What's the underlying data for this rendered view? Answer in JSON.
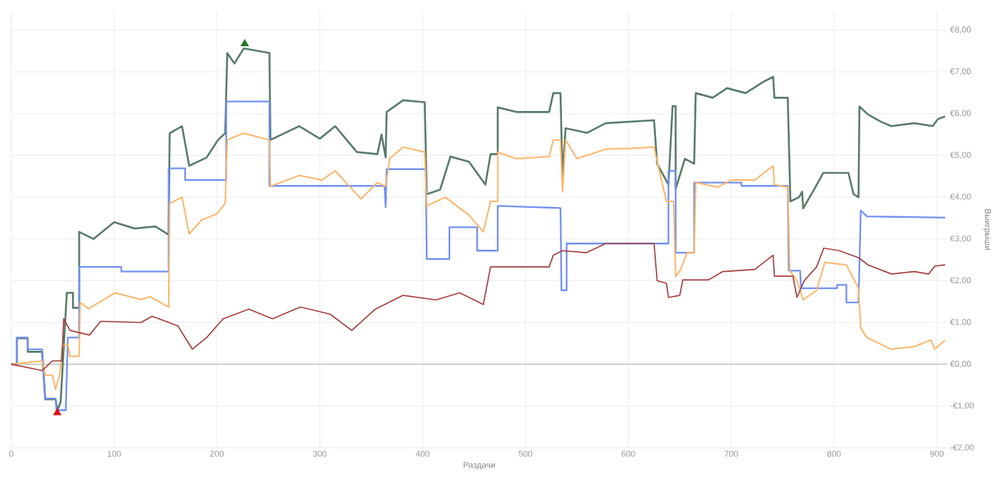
{
  "chart_data": {
    "type": "line",
    "xlabel": "Раздачи",
    "ylabel": "Выигрыши",
    "xlim": [
      0,
      910
    ],
    "ylim": [
      -2,
      8.45
    ],
    "xticks": [
      0,
      100,
      200,
      300,
      400,
      500,
      600,
      700,
      800,
      900
    ],
    "yticks": [
      {
        "value": -2,
        "label": "-€2,00"
      },
      {
        "value": -1,
        "label": "-€1,00"
      },
      {
        "value": 0,
        "label": "€0,00"
      },
      {
        "value": 1,
        "label": "€1,00"
      },
      {
        "value": 2,
        "label": "€2,00"
      },
      {
        "value": 3,
        "label": "€3,00"
      },
      {
        "value": 4,
        "label": "€4,00"
      },
      {
        "value": 5,
        "label": "€5,00"
      },
      {
        "value": 6,
        "label": "€6,00"
      },
      {
        "value": 7,
        "label": "€7,00"
      },
      {
        "value": 8,
        "label": "€8,00"
      }
    ],
    "grid": true,
    "line_style": "solid",
    "marker": "none",
    "ref_lines": [
      {
        "axis": "y",
        "value": 0,
        "color": "#c8c8c8"
      }
    ],
    "series": [
      {
        "color": "#587a68",
        "x": [
          0,
          5.5,
          5.5,
          16,
          16,
          30,
          33,
          43,
          45,
          48,
          54,
          60,
          60,
          66,
          66,
          80,
          100,
          120,
          140,
          153,
          154,
          166,
          173,
          190,
          201,
          208,
          210,
          217,
          226,
          251,
          252,
          280,
          300,
          315,
          336,
          356,
          360,
          364,
          365,
          381,
          402,
          404,
          417,
          427,
          445,
          461,
          466,
          473,
          473,
          491,
          523,
          527,
          534,
          536,
          539,
          560,
          578,
          625,
          628,
          639,
          643,
          646,
          646,
          655,
          664,
          665.5,
          682,
          696,
          714,
          732,
          740.8,
          742,
          755,
          757.6,
          766,
          769,
          770,
          781,
          789.5,
          814,
          819,
          823.8,
          824.7,
          833,
          846,
          855.7,
          878,
          896,
          901,
          908
        ],
        "values": [
          0,
          0,
          0.62,
          0.62,
          0.3,
          0.3,
          -0.84,
          -0.84,
          -1.1,
          -0.9,
          1.71,
          1.71,
          1.35,
          1.35,
          3.17,
          3.0,
          3.4,
          3.25,
          3.3,
          3.1,
          5.53,
          5.7,
          4.75,
          4.95,
          5.37,
          5.53,
          7.45,
          7.2,
          7.56,
          7.45,
          5.37,
          5.7,
          5.4,
          5.7,
          5.08,
          5.03,
          5.5,
          4.95,
          6.04,
          6.32,
          6.27,
          4.07,
          4.18,
          4.97,
          4.85,
          4.3,
          5.03,
          5.03,
          6.15,
          6.04,
          6.04,
          6.49,
          6.49,
          4.47,
          5.65,
          5.54,
          5.77,
          5.84,
          4.8,
          4.3,
          6.18,
          6.18,
          4.2,
          4.92,
          4.8,
          6.49,
          6.38,
          6.61,
          6.49,
          6.77,
          6.88,
          6.38,
          6.38,
          3.9,
          4.0,
          4.13,
          3.73,
          4.2,
          4.58,
          4.58,
          4.07,
          4.0,
          6.17,
          5.98,
          5.8,
          5.7,
          5.77,
          5.7,
          5.87,
          5.93
        ]
      },
      {
        "color": "#6f8ff2",
        "x": [
          0,
          5.5,
          5.5,
          16,
          16,
          30,
          33,
          43,
          44,
          53,
          55,
          66,
          66,
          107,
          107,
          153,
          153,
          169,
          169,
          209,
          209,
          251,
          251,
          363,
          364,
          365,
          403,
          404,
          426,
          426,
          453,
          453,
          473,
          473,
          534,
          535,
          540,
          540,
          639,
          639,
          646,
          646,
          664,
          664,
          710,
          710,
          755,
          756,
          767,
          768,
          803,
          803,
          812,
          812,
          823.8,
          826,
          832,
          908
        ],
        "values": [
          0,
          0,
          0.64,
          0.64,
          0.36,
          0.36,
          -0.82,
          -0.82,
          -1.1,
          -1.1,
          0.64,
          0.64,
          2.33,
          2.33,
          2.22,
          2.22,
          4.69,
          4.69,
          4.41,
          4.41,
          6.29,
          6.29,
          4.27,
          4.27,
          3.76,
          4.67,
          4.67,
          2.52,
          2.52,
          3.28,
          3.28,
          2.72,
          2.72,
          3.79,
          3.74,
          1.77,
          1.77,
          2.89,
          2.89,
          4.63,
          4.63,
          2.67,
          2.67,
          4.35,
          4.35,
          4.27,
          4.27,
          2.24,
          2.24,
          1.82,
          1.82,
          1.9,
          1.9,
          1.48,
          1.48,
          3.68,
          3.54,
          3.51
        ]
      },
      {
        "color": "#ffb366",
        "x": [
          0,
          30,
          33,
          40,
          43,
          47,
          50,
          55,
          57,
          66,
          67,
          75,
          101,
          126,
          135,
          153,
          154,
          166,
          173,
          185,
          200,
          208,
          210,
          226,
          251,
          252,
          280,
          302,
          315,
          340,
          356,
          364,
          368,
          381,
          402,
          404,
          422,
          445,
          459,
          466,
          473,
          473,
          491,
          523,
          527,
          534,
          536,
          539,
          550,
          578,
          603,
          625,
          628,
          637,
          644,
          646,
          651,
          657,
          664,
          665.5,
          687,
          700,
          723,
          740.8,
          742,
          755,
          757,
          764,
          770,
          783,
          791,
          812,
          823.8,
          826,
          832,
          855.7,
          878,
          894,
          898,
          908
        ],
        "values": [
          0,
          0.08,
          -0.26,
          -0.26,
          -0.6,
          -0.26,
          0.47,
          0.47,
          0.19,
          0.19,
          1.48,
          1.33,
          1.71,
          1.55,
          1.62,
          1.37,
          3.85,
          4.0,
          3.12,
          3.45,
          3.6,
          3.85,
          5.37,
          5.53,
          5.37,
          4.26,
          4.52,
          4.41,
          4.63,
          3.96,
          4.35,
          4.26,
          4.92,
          5.2,
          5.08,
          3.79,
          4.0,
          3.57,
          3.17,
          3.9,
          3.9,
          5.08,
          4.92,
          4.97,
          5.37,
          5.37,
          4.13,
          5.37,
          4.92,
          5.15,
          5.17,
          5.2,
          4.86,
          3.9,
          3.9,
          2.1,
          2.27,
          2.67,
          2.67,
          4.35,
          4.24,
          4.41,
          4.41,
          4.75,
          4.3,
          4.24,
          2.24,
          2.0,
          1.54,
          1.77,
          2.44,
          2.38,
          1.82,
          0.87,
          0.64,
          0.36,
          0.42,
          0.58,
          0.36,
          0.58
        ]
      },
      {
        "color": "#a33a3a",
        "x": [
          0,
          30,
          40,
          49,
          51,
          57,
          76,
          87,
          126,
          137,
          162,
          176,
          190,
          206,
          231,
          254,
          281,
          310,
          331,
          354,
          381,
          413,
          436,
          459,
          466,
          523,
          527,
          536,
          559,
          578,
          625,
          628,
          637,
          639,
          650,
          653,
          678,
          692,
          723,
          740.8,
          742,
          760,
          764,
          771,
          783,
          790,
          805,
          824,
          833,
          856,
          878,
          892,
          898,
          908
        ],
        "values": [
          0,
          -0.15,
          0.08,
          0.08,
          1.09,
          0.81,
          0.7,
          1.03,
          1.0,
          1.15,
          0.92,
          0.36,
          0.64,
          1.09,
          1.32,
          1.09,
          1.37,
          1.2,
          0.81,
          1.32,
          1.65,
          1.54,
          1.71,
          1.43,
          2.33,
          2.33,
          2.61,
          2.72,
          2.67,
          2.89,
          2.89,
          2.0,
          1.94,
          1.6,
          1.65,
          2.02,
          2.02,
          2.22,
          2.27,
          2.61,
          2.11,
          2.11,
          1.6,
          2.0,
          2.33,
          2.78,
          2.72,
          2.55,
          2.38,
          2.16,
          2.22,
          2.16,
          2.35,
          2.38
        ]
      },
      {
        "type": "scatter",
        "marker": "triangle",
        "color": "#1e7a1e",
        "x": [
          227
        ],
        "values": [
          7.67
        ]
      },
      {
        "type": "scatter",
        "marker": "triangle",
        "color": "#e01010",
        "x": [
          44.7
        ],
        "values": [
          -1.16
        ]
      }
    ]
  }
}
